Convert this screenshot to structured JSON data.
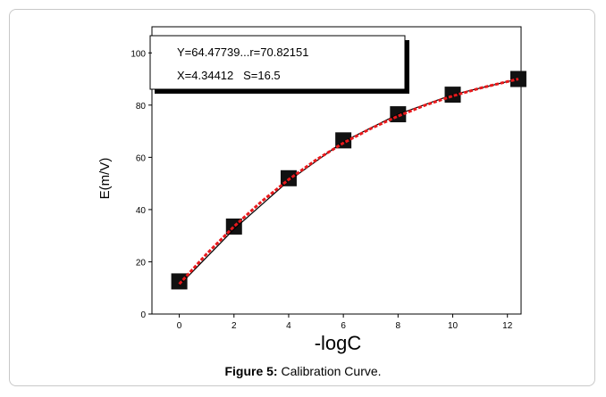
{
  "chart_data": {
    "type": "scatter",
    "ylabel": "E(m/V)",
    "xlabel": "-logC",
    "annotation": [
      "Y=64.47739...r=70.82151",
      "X=4.34412   S=16.5"
    ],
    "caption_label": "Figure 5:",
    "caption_text": " Calibration Curve.",
    "xlim": [
      -1,
      12.5
    ],
    "ylim": [
      0,
      110
    ],
    "xticks": [
      0,
      2,
      4,
      6,
      8,
      10,
      12
    ],
    "yticks": [
      0,
      20,
      40,
      60,
      80,
      100
    ],
    "series": [
      {
        "kind": "points",
        "color": "#111111",
        "x": [
          0,
          2,
          4,
          6,
          8,
          10,
          12.4
        ],
        "values": [
          12.5,
          33.5,
          52,
          66.5,
          76.5,
          84,
          90
        ]
      },
      {
        "kind": "line",
        "color": "#000000",
        "x": [
          0,
          2,
          4,
          6,
          8,
          10,
          12.4
        ],
        "values": [
          11,
          32.5,
          51,
          66,
          76.5,
          84,
          90
        ]
      },
      {
        "kind": "fit",
        "color": "#e8191c",
        "x": [
          0,
          1,
          2,
          3,
          4,
          5,
          6,
          7,
          8,
          9,
          10,
          11,
          12,
          12.4
        ],
        "values": [
          11.5,
          23,
          33.5,
          43,
          51.5,
          59,
          65.5,
          71,
          75.8,
          80,
          83.5,
          86.5,
          89,
          90
        ]
      }
    ]
  }
}
